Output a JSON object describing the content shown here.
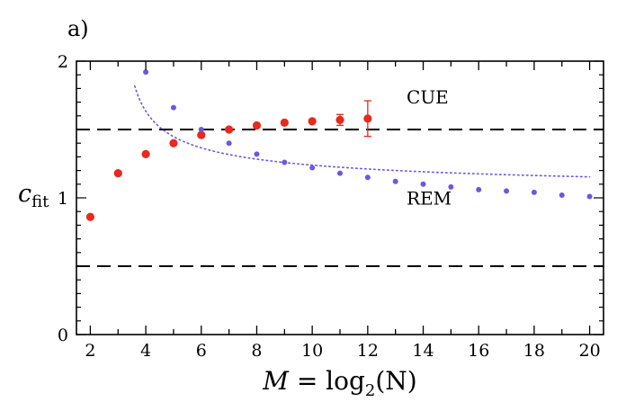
{
  "chart_data": {
    "type": "scatter",
    "panel_label": "a)",
    "xlabel": {
      "var": "M",
      "eq": " = log",
      "sub": "2",
      "arg": "(N)"
    },
    "ylabel": {
      "main": "c",
      "sub": "fit"
    },
    "xlim": [
      1.5,
      20.5
    ],
    "ylim": [
      0,
      2
    ],
    "x_ticks": [
      2,
      4,
      6,
      8,
      10,
      12,
      14,
      16,
      18,
      20
    ],
    "y_ticks": [
      0,
      1,
      2
    ],
    "grid": false,
    "reference_lines": [
      0.5,
      1.5
    ],
    "series": [
      {
        "name": "CUE",
        "color": "#e8291c",
        "x": [
          2,
          3,
          4,
          5,
          6,
          7,
          8,
          9,
          10,
          11,
          12
        ],
        "y": [
          0.86,
          1.18,
          1.32,
          1.4,
          1.46,
          1.5,
          1.53,
          1.55,
          1.56,
          1.57,
          1.58
        ],
        "yerr": [
          0,
          0,
          0,
          0,
          0,
          0,
          0,
          0,
          0,
          0.04,
          0.13
        ]
      },
      {
        "name": "REM",
        "color": "#6f55e0",
        "x": [
          4,
          5,
          6,
          7,
          8,
          9,
          10,
          11,
          12,
          13,
          14,
          15,
          16,
          17,
          18,
          19,
          20
        ],
        "y": [
          1.92,
          1.66,
          1.5,
          1.4,
          1.32,
          1.26,
          1.22,
          1.18,
          1.15,
          1.12,
          1.1,
          1.08,
          1.06,
          1.05,
          1.04,
          1.02,
          1.01
        ],
        "fit_curve": {
          "a": 0.88,
          "b": 4.1,
          "x_start": 3.6,
          "x_end": 20
        }
      }
    ],
    "annotations": [
      {
        "text": "CUE",
        "x": 13.4,
        "y": 1.69
      },
      {
        "text": "REM",
        "x": 13.4,
        "y": 0.95
      }
    ]
  }
}
